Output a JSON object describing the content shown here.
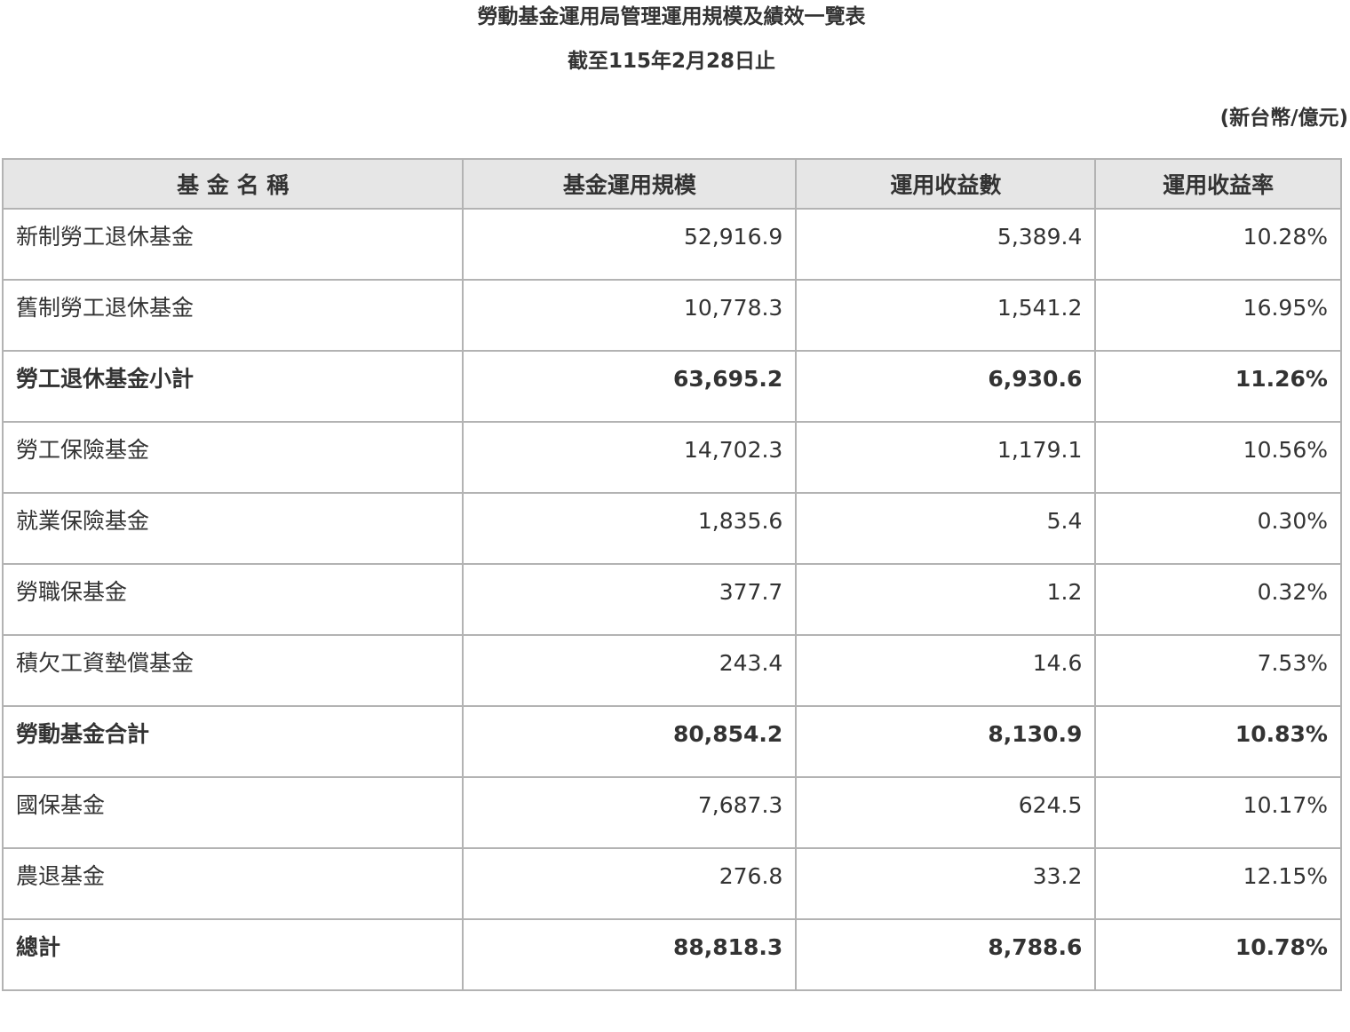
{
  "title": "勞動基金運用局管理運用規模及績效一覽表",
  "subtitle": "截至115年2月28日止",
  "unit": "(新台幣/億元)",
  "columns": [
    "基 金 名 稱",
    "基金運用規模",
    "運用收益數",
    "運用收益率"
  ],
  "rows": [
    {
      "name": "新制勞工退休基金",
      "size": "52,916.9",
      "income": "5,389.4",
      "rate": "10.28%",
      "bold": false
    },
    {
      "name": "舊制勞工退休基金",
      "size": "10,778.3",
      "income": "1,541.2",
      "rate": "16.95%",
      "bold": false
    },
    {
      "name": "勞工退休基金小計",
      "size": "63,695.2",
      "income": "6,930.6",
      "rate": "11.26%",
      "bold": true
    },
    {
      "name": "勞工保險基金",
      "size": "14,702.3",
      "income": "1,179.1",
      "rate": "10.56%",
      "bold": false
    },
    {
      "name": "就業保險基金",
      "size": "1,835.6",
      "income": "5.4",
      "rate": "0.30%",
      "bold": false
    },
    {
      "name": "勞職保基金",
      "size": "377.7",
      "income": "1.2",
      "rate": "0.32%",
      "bold": false
    },
    {
      "name": "積欠工資墊償基金",
      "size": "243.4",
      "income": "14.6",
      "rate": "7.53%",
      "bold": false
    },
    {
      "name": "勞動基金合計",
      "size": "80,854.2",
      "income": "8,130.9",
      "rate": "10.83%",
      "bold": true
    },
    {
      "name": "國保基金",
      "size": "7,687.3",
      "income": "624.5",
      "rate": "10.17%",
      "bold": false
    },
    {
      "name": "農退基金",
      "size": "276.8",
      "income": "33.2",
      "rate": "12.15%",
      "bold": false
    },
    {
      "name": "總計",
      "size": "88,818.3",
      "income": "8,788.6",
      "rate": "10.78%",
      "bold": true
    }
  ]
}
